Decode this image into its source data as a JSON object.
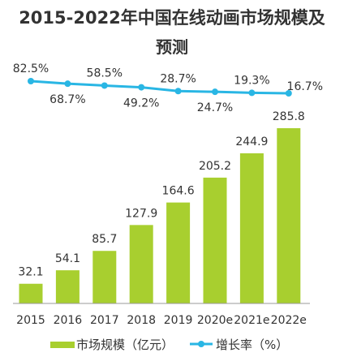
{
  "chart_data": {
    "type": "bar",
    "title": "2015-2022年中国在线动画市场规模及",
    "subtitle": "预测",
    "categories": [
      "2015",
      "2016",
      "2017",
      "2018",
      "2019",
      "2020e",
      "2021e",
      "2022e"
    ],
    "series": [
      {
        "name": "市场规模（亿元）",
        "type": "bar",
        "values": [
          32.1,
          54.1,
          85.7,
          127.9,
          164.6,
          205.2,
          244.9,
          285.8
        ],
        "labels": [
          "32.1",
          "54.1",
          "85.7",
          "127.9",
          "164.6",
          "205.2",
          "244.9",
          "285.8"
        ],
        "color": "#a8cf2f"
      },
      {
        "name": "增长率（%）",
        "type": "line",
        "values": [
          82.5,
          68.7,
          58.5,
          49.2,
          28.7,
          24.7,
          19.3,
          16.7
        ],
        "labels": [
          "82.5%",
          "68.7%",
          "58.5%",
          "49.2%",
          "28.7%",
          "24.7%",
          "19.3%",
          "16.7%"
        ],
        "color": "#29b6e4"
      }
    ],
    "legend": {
      "position": "bottom",
      "bar_label": "市场规模（亿元）",
      "line_label": "增长率（%）"
    },
    "grid": false
  }
}
